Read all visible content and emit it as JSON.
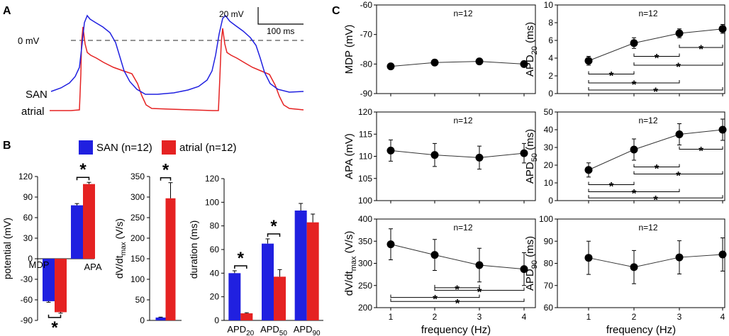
{
  "colors": {
    "san": "#2020e0",
    "atrial": "#e52222",
    "axis": "#000000",
    "dash": "#555555"
  },
  "panels": {
    "A": {
      "label": "A",
      "zero_label": "0 mV",
      "trace_labels": {
        "san": "SAN",
        "atrial": "atrial"
      },
      "scale_bar": {
        "voltage": "20 mV",
        "time": "100 ms"
      }
    },
    "B": {
      "label": "B"
    },
    "C": {
      "label": "C"
    }
  },
  "legend": {
    "san": "SAN (n=12)",
    "atrial": "atrial (n=12)"
  },
  "chart_data": [
    {
      "id": "b-potential",
      "type": "bar",
      "ylabel": "potential (mV)",
      "ylim": [
        -90,
        120
      ],
      "yticks": [
        "120",
        "90",
        "60",
        "30",
        "0",
        "-30",
        "-60",
        "-90"
      ],
      "categories": [
        "MDP",
        "APA"
      ],
      "series": [
        {
          "name": "SAN (n=12)",
          "values": [
            -62,
            78
          ],
          "errors": [
            1.5,
            2.5
          ]
        },
        {
          "name": "atrial (n=12)",
          "values": [
            -78,
            109
          ],
          "errors": [
            1.5,
            2.5
          ]
        }
      ],
      "significance": [
        "*",
        "*"
      ]
    },
    {
      "id": "b-dvdt",
      "type": "bar",
      "ylabel": "dV/dt",
      "ylabel_sub": "max",
      "ylabel_unit": " (V/s)",
      "ylim": [
        0,
        350
      ],
      "yticks": [
        "350",
        "300",
        "250",
        "200",
        "150",
        "100",
        "50",
        "0"
      ],
      "categories": [
        ""
      ],
      "series": [
        {
          "name": "SAN (n=12)",
          "values": [
            7
          ],
          "errors": [
            1
          ]
        },
        {
          "name": "atrial (n=12)",
          "values": [
            297
          ],
          "errors": [
            38
          ]
        }
      ],
      "significance": [
        "*"
      ]
    },
    {
      "id": "b-duration",
      "type": "bar",
      "ylabel": "duration (ms)",
      "ylim": [
        0,
        120
      ],
      "yticks": [
        "120",
        "100",
        "80",
        "60",
        "40",
        "20",
        "0"
      ],
      "categories": [
        {
          "main": "APD",
          "sub": "20"
        },
        {
          "main": "APD",
          "sub": "50"
        },
        {
          "main": "APD",
          "sub": "90"
        }
      ],
      "series": [
        {
          "name": "SAN (n=12)",
          "values": [
            40,
            65,
            93
          ],
          "errors": [
            2,
            4,
            6
          ]
        },
        {
          "name": "atrial (n=12)",
          "values": [
            6,
            37,
            83
          ],
          "errors": [
            0.5,
            6,
            7
          ]
        }
      ],
      "significance": [
        "*",
        "*",
        ""
      ]
    }
  ],
  "line_plots": {
    "xlabel": "frequency (Hz)",
    "x": [
      "1",
      "2",
      "3",
      "4"
    ],
    "n_label": "n=12",
    "plots": [
      {
        "id": "mdp",
        "ylabel": "MDP (mV)",
        "ylabel_sub": "",
        "ylabel_tail": "",
        "ylim": [
          -90,
          -60
        ],
        "yticks": [
          "-60",
          "-70",
          "-80",
          "-90"
        ],
        "values": [
          -80.8,
          -79.5,
          -79.1,
          -80
        ],
        "errors": [
          0,
          0,
          0,
          0
        ],
        "sig": []
      },
      {
        "id": "apd20",
        "ylabel": "APD",
        "ylabel_sub": "20",
        "ylabel_tail": " (ms)",
        "ylim": [
          0,
          10
        ],
        "yticks": [
          "10",
          "8",
          "6",
          "4",
          "2",
          "0"
        ],
        "values": [
          3.7,
          5.7,
          6.8,
          7.3
        ],
        "errors": [
          0.5,
          0.6,
          0.5,
          0.5
        ],
        "sig": [
          {
            "x1": "3",
            "x2": "4",
            "y": 5.2,
            "star": "*"
          },
          {
            "x1": "2",
            "x2": "3",
            "y": 4.2,
            "star": "*"
          },
          {
            "x1": "2",
            "x2": "4",
            "y": 3.2,
            "star": "*"
          },
          {
            "x1": "1",
            "x2": "2",
            "y": 2.2,
            "star": "*"
          },
          {
            "x1": "1",
            "x2": "3",
            "y": 1.2,
            "star": "*"
          },
          {
            "x1": "1",
            "x2": "4",
            "y": 0.4,
            "star": "*"
          }
        ]
      },
      {
        "id": "apa",
        "ylabel": "APA (mV)",
        "ylabel_sub": "",
        "ylabel_tail": "",
        "ylim": [
          100,
          120
        ],
        "yticks": [
          "120",
          "115",
          "110",
          "105",
          "100"
        ],
        "values": [
          111.3,
          110.3,
          109.7,
          110.7
        ],
        "errors": [
          2.4,
          2.6,
          2.6,
          2.2
        ],
        "sig": []
      },
      {
        "id": "apd50",
        "ylabel": "APD",
        "ylabel_sub": "50",
        "ylabel_tail": " (ms)",
        "ylim": [
          0,
          50
        ],
        "yticks": [
          "50",
          "40",
          "30",
          "20",
          "10",
          "0"
        ],
        "values": [
          17.3,
          28.8,
          37.4,
          40
        ],
        "errors": [
          4,
          6,
          6,
          6
        ],
        "sig": [
          {
            "x1": "3",
            "x2": "4",
            "y": 29,
            "star": "*"
          },
          {
            "x1": "2",
            "x2": "3",
            "y": 19,
            "star": "*"
          },
          {
            "x1": "2",
            "x2": "4",
            "y": 15,
            "star": "*"
          },
          {
            "x1": "1",
            "x2": "2",
            "y": 9,
            "star": "*"
          },
          {
            "x1": "1",
            "x2": "3",
            "y": 5,
            "star": "*"
          },
          {
            "x1": "1",
            "x2": "4",
            "y": 1.5,
            "star": "*"
          }
        ]
      },
      {
        "id": "dvdt",
        "ylabel": "dV/dt",
        "ylabel_sub": "max",
        "ylabel_tail": " (V/s)",
        "ylim": [
          200,
          400
        ],
        "yticks": [
          "400",
          "350",
          "300",
          "250",
          "200"
        ],
        "values": [
          343,
          319,
          296,
          287
        ],
        "errors": [
          35,
          35,
          38,
          37
        ],
        "sig": [
          {
            "x1": "2",
            "x2": "3",
            "y": 245,
            "star": "*"
          },
          {
            "x1": "2",
            "x2": "4",
            "y": 239,
            "star": "*"
          },
          {
            "x1": "1",
            "x2": "3",
            "y": 223,
            "star": "*"
          },
          {
            "x1": "1",
            "x2": "4",
            "y": 214,
            "star": "*"
          }
        ]
      },
      {
        "id": "apd90",
        "ylabel": "APD",
        "ylabel_sub": "90",
        "ylabel_tail": " (ms)",
        "ylim": [
          60,
          100
        ],
        "yticks": [
          "100",
          "90",
          "80",
          "70",
          "60"
        ],
        "values": [
          82.5,
          78.3,
          82.7,
          84
        ],
        "errors": [
          7.5,
          7.5,
          7.5,
          7.5
        ],
        "sig": []
      }
    ]
  }
}
